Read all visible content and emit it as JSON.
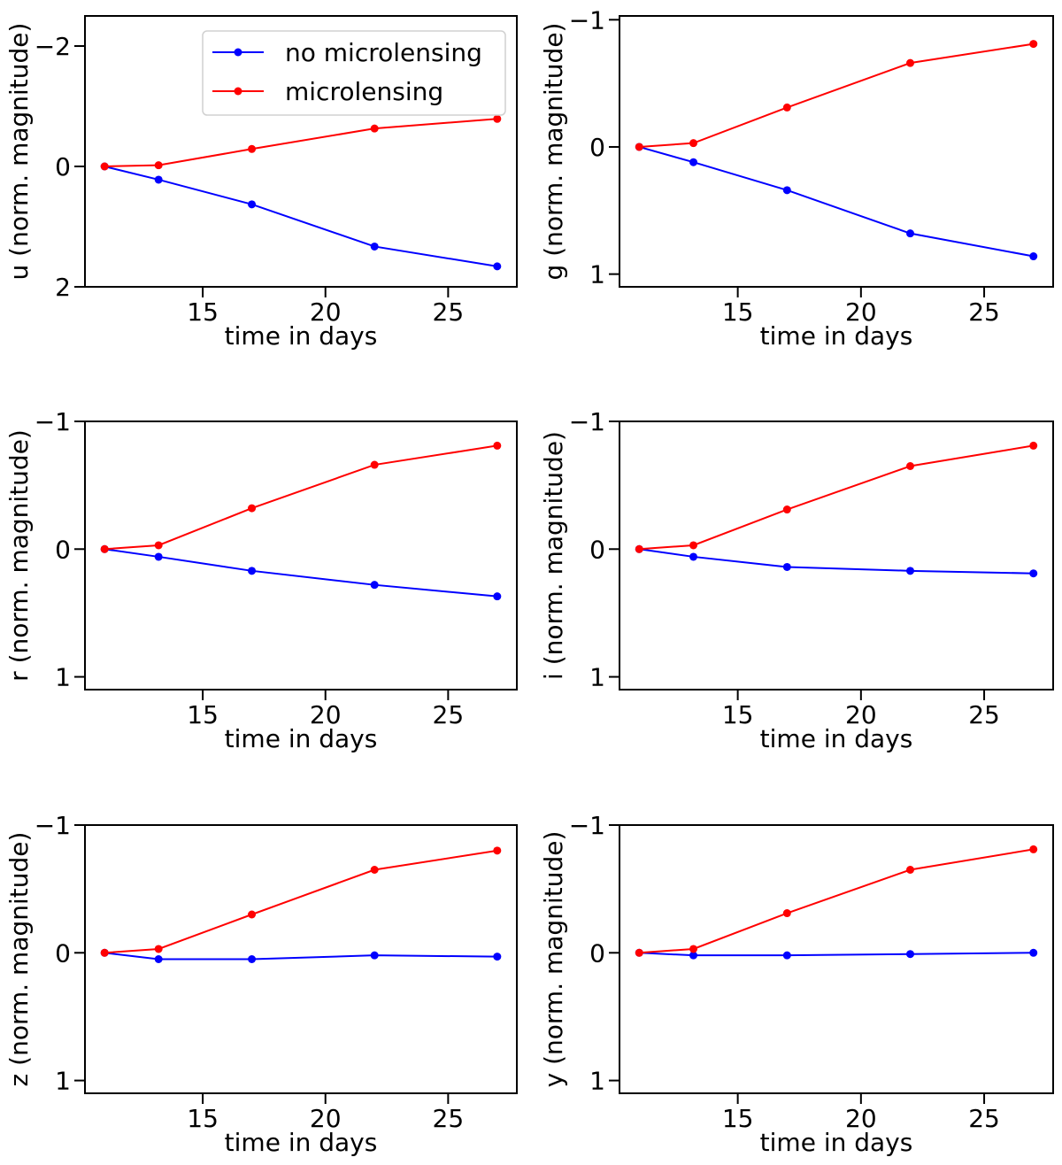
{
  "legend": {
    "entries": [
      {
        "label": "no microlensing",
        "color": "#0000ff"
      },
      {
        "label": "microlensing",
        "color": "#ff0000"
      }
    ]
  },
  "chart_data": [
    {
      "type": "line",
      "band": "u",
      "xlabel": "time in days",
      "ylabel": "u (norm. magnitude)",
      "x_ticks": [
        15,
        20,
        25
      ],
      "y_ticks": [
        -2,
        0,
        2
      ],
      "y_tick_labels": [
        "−2",
        "0",
        "2"
      ],
      "xlim": [
        10.2,
        27.8
      ],
      "ylim": [
        -2.5,
        2.0
      ],
      "y_inverted": true,
      "x": [
        11,
        13.2,
        17,
        22,
        27
      ],
      "series": [
        {
          "name": "no microlensing",
          "color": "#0000ff",
          "values": [
            0.0,
            0.22,
            0.63,
            1.33,
            1.66
          ]
        },
        {
          "name": "microlensing",
          "color": "#ff0000",
          "values": [
            0.0,
            -0.02,
            -0.29,
            -0.63,
            -0.79
          ]
        }
      ]
    },
    {
      "type": "line",
      "band": "g",
      "xlabel": "time in days",
      "ylabel": "g (norm. magnitude)",
      "x_ticks": [
        15,
        20,
        25
      ],
      "y_ticks": [
        -1,
        0,
        1
      ],
      "y_tick_labels": [
        "−1",
        "0",
        "1"
      ],
      "xlim": [
        10.2,
        27.8
      ],
      "ylim": [
        -1.03,
        1.1
      ],
      "y_inverted": true,
      "x": [
        11,
        13.2,
        17,
        22,
        27
      ],
      "series": [
        {
          "name": "no microlensing",
          "color": "#0000ff",
          "values": [
            0.0,
            0.12,
            0.34,
            0.68,
            0.86
          ]
        },
        {
          "name": "microlensing",
          "color": "#ff0000",
          "values": [
            0.0,
            -0.03,
            -0.31,
            -0.66,
            -0.81
          ]
        }
      ]
    },
    {
      "type": "line",
      "band": "r",
      "xlabel": "time in days",
      "ylabel": "r (norm. magnitude)",
      "x_ticks": [
        15,
        20,
        25
      ],
      "y_ticks": [
        -1,
        0,
        1
      ],
      "y_tick_labels": [
        "−1",
        "0",
        "1"
      ],
      "xlim": [
        10.2,
        27.8
      ],
      "ylim": [
        -1.0,
        1.1
      ],
      "y_inverted": true,
      "x": [
        11,
        13.2,
        17,
        22,
        27
      ],
      "series": [
        {
          "name": "no microlensing",
          "color": "#0000ff",
          "values": [
            0.0,
            0.06,
            0.17,
            0.28,
            0.37
          ]
        },
        {
          "name": "microlensing",
          "color": "#ff0000",
          "values": [
            0.0,
            -0.03,
            -0.32,
            -0.66,
            -0.81
          ]
        }
      ]
    },
    {
      "type": "line",
      "band": "i",
      "xlabel": "time in days",
      "ylabel": "i (norm. magnitude)",
      "x_ticks": [
        15,
        20,
        25
      ],
      "y_ticks": [
        -1,
        0,
        1
      ],
      "y_tick_labels": [
        "−1",
        "0",
        "1"
      ],
      "xlim": [
        10.2,
        27.8
      ],
      "ylim": [
        -1.0,
        1.1
      ],
      "y_inverted": true,
      "x": [
        11,
        13.2,
        17,
        22,
        27
      ],
      "series": [
        {
          "name": "no microlensing",
          "color": "#0000ff",
          "values": [
            0.0,
            0.06,
            0.14,
            0.17,
            0.19
          ]
        },
        {
          "name": "microlensing",
          "color": "#ff0000",
          "values": [
            0.0,
            -0.03,
            -0.31,
            -0.65,
            -0.81
          ]
        }
      ]
    },
    {
      "type": "line",
      "band": "z",
      "xlabel": "time in days",
      "ylabel": "z (norm. magnitude)",
      "x_ticks": [
        15,
        20,
        25
      ],
      "y_ticks": [
        -1,
        0,
        1
      ],
      "y_tick_labels": [
        "−1",
        "0",
        "1"
      ],
      "xlim": [
        10.2,
        27.8
      ],
      "ylim": [
        -1.0,
        1.1
      ],
      "y_inverted": true,
      "x": [
        11,
        13.2,
        17,
        22,
        27
      ],
      "series": [
        {
          "name": "no microlensing",
          "color": "#0000ff",
          "values": [
            0.0,
            0.05,
            0.05,
            0.02,
            0.03
          ]
        },
        {
          "name": "microlensing",
          "color": "#ff0000",
          "values": [
            0.0,
            -0.03,
            -0.3,
            -0.65,
            -0.8
          ]
        }
      ]
    },
    {
      "type": "line",
      "band": "y",
      "xlabel": "time in days",
      "ylabel": "y (norm. magnitude)",
      "x_ticks": [
        15,
        20,
        25
      ],
      "y_ticks": [
        -1,
        0,
        1
      ],
      "y_tick_labels": [
        "−1",
        "0",
        "1"
      ],
      "xlim": [
        10.2,
        27.8
      ],
      "ylim": [
        -1.0,
        1.1
      ],
      "y_inverted": true,
      "x": [
        11,
        13.2,
        17,
        22,
        27
      ],
      "series": [
        {
          "name": "no microlensing",
          "color": "#0000ff",
          "values": [
            0.0,
            0.02,
            0.02,
            0.01,
            0.0
          ]
        },
        {
          "name": "microlensing",
          "color": "#ff0000",
          "values": [
            0.0,
            -0.03,
            -0.31,
            -0.65,
            -0.81
          ]
        }
      ]
    }
  ]
}
